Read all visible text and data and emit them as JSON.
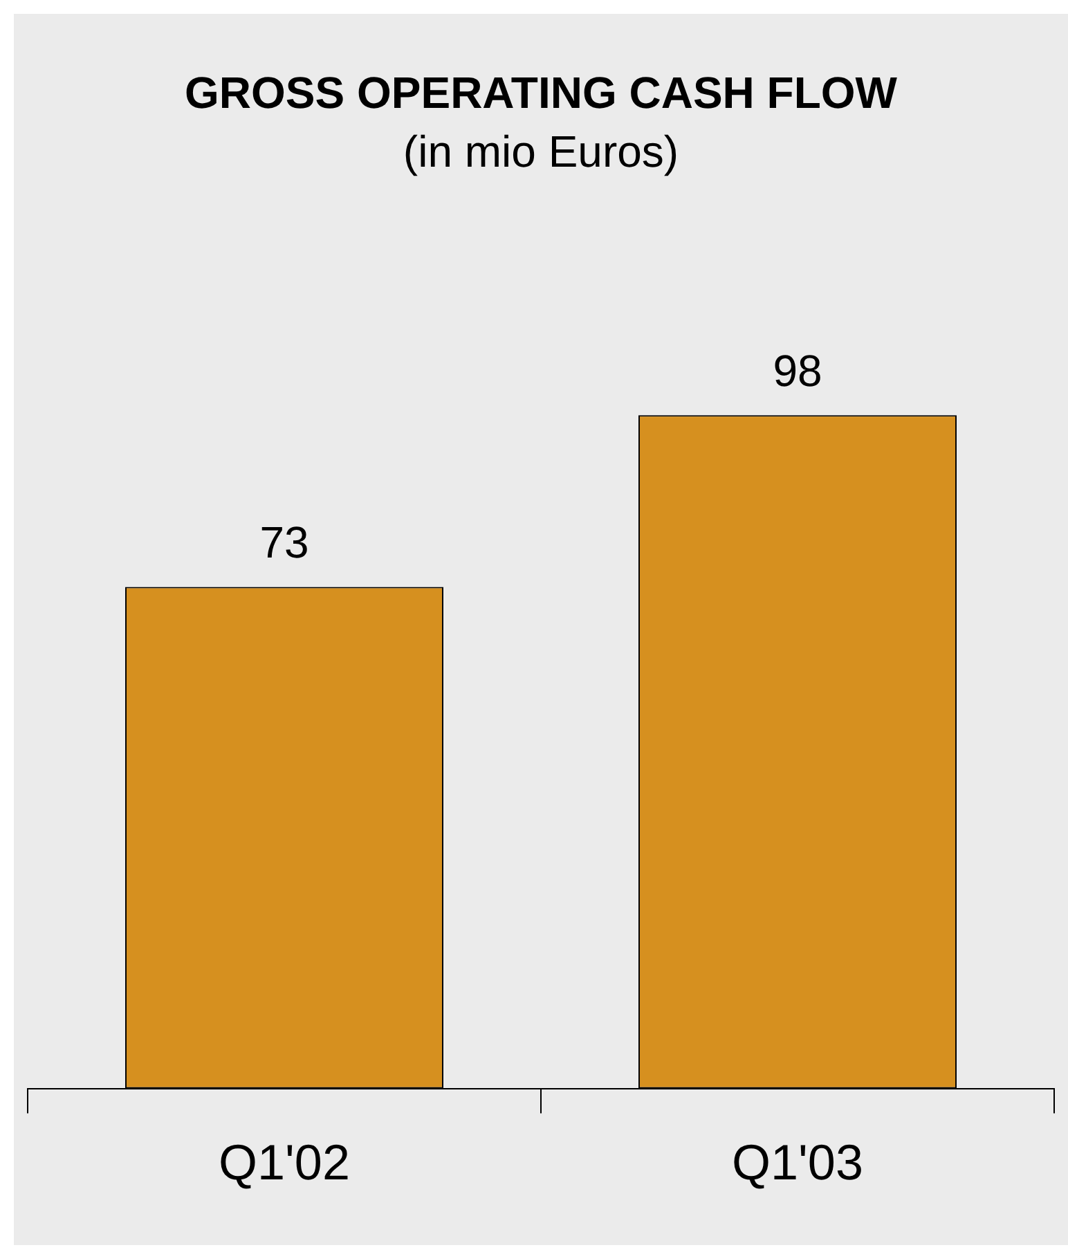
{
  "chart_data": {
    "type": "bar",
    "title": "GROSS OPERATING CASH FLOW",
    "subtitle": "(in mio Euros)",
    "categories": [
      "Q1'02",
      "Q1'03"
    ],
    "values": [
      73,
      98
    ],
    "color": "#d6901f",
    "data_labels": true,
    "grid": false,
    "legend": false
  }
}
